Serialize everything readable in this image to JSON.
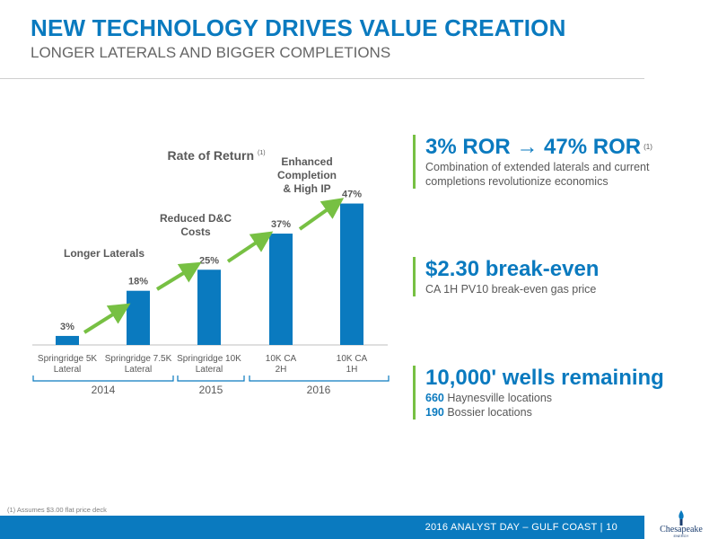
{
  "header": {
    "title": "NEW TECHNOLOGY DRIVES VALUE CREATION",
    "subtitle": "LONGER LATERALS AND BIGGER COMPLETIONS"
  },
  "chart_data": {
    "type": "bar",
    "title": "Rate of Return",
    "title_footnote": "(1)",
    "categories": [
      "Springridge 5K Lateral",
      "Springridge 7.5K Lateral",
      "Springridge 10K Lateral",
      "10K CA 2H",
      "10K CA 1H"
    ],
    "values": [
      3,
      18,
      25,
      37,
      47
    ],
    "value_labels": [
      "3%",
      "18%",
      "25%",
      "37%",
      "47%"
    ],
    "ylim": [
      0,
      50
    ],
    "grid": false,
    "bar_color": "#0a7abf",
    "arrow_color": "#77c043",
    "transitions": [
      {
        "label": [
          "Longer Laterals"
        ]
      },
      {
        "label": [
          "Reduced D&C",
          "Costs"
        ]
      },
      {
        "label": [
          "Enhanced",
          "Completion",
          "& High IP"
        ]
      }
    ],
    "year_groups": [
      {
        "label": "2014"
      },
      {
        "label": "2015"
      },
      {
        "label": "2016"
      }
    ]
  },
  "kpis": {
    "ror": {
      "from": "3% ROR",
      "arrow": "→",
      "to": "47% ROR",
      "footnote": "(1)",
      "desc1": "Combination of extended laterals and current",
      "desc2": "completions revolutionize economics"
    },
    "breakeven": {
      "head": "$2.30 break-even",
      "desc": "CA 1H PV10 break-even gas price"
    },
    "wells": {
      "head": "10,000' wells remaining",
      "line1_num": "660",
      "line1_text": " Haynesville locations",
      "line2_num": "190",
      "line2_text": " Bossier locations"
    }
  },
  "footnote": "(1)  Assumes $3.00 flat price deck",
  "footer": {
    "text": "2016 ANALYST DAY – GULF COAST   |   10",
    "logo_text": "Chesapeake",
    "logo_sub": "ENERGY"
  },
  "colors": {
    "brand_blue": "#0a7abf",
    "accent_green": "#77c043"
  }
}
